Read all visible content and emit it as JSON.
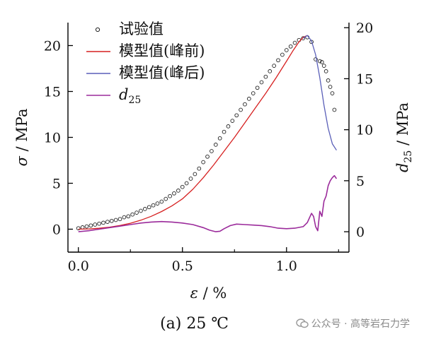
{
  "chart_data": {
    "type": "line",
    "caption": "(a) 25 ℃",
    "x_axis": {
      "label_symbol": "ε",
      "label_unit": " / %",
      "range": [
        -0.05,
        1.3
      ],
      "ticks": [
        0.0,
        0.5,
        1.0
      ],
      "tick_labels": [
        "0.0",
        "0.5",
        "1.0"
      ]
    },
    "y_left": {
      "label_symbol": "σ",
      "label_unit": " / MPa",
      "range": [
        -2.5,
        22.5
      ],
      "ticks": [
        0,
        5,
        10,
        15,
        20
      ],
      "tick_labels": [
        "0",
        "5",
        "10",
        "15",
        "20"
      ]
    },
    "y_right": {
      "label_symbol": "d",
      "label_sub": "25",
      "label_unit": " / MPa",
      "range": [
        -2.0,
        20.5
      ],
      "ticks": [
        0,
        5,
        10,
        15,
        20
      ],
      "tick_labels": [
        "0",
        "5",
        "10",
        "15",
        "20"
      ]
    },
    "legend": {
      "position": "top-left",
      "entries": [
        {
          "label": "试验值",
          "marker": "circle",
          "color": "#222222"
        },
        {
          "label": "模型值(峰前)",
          "marker": "line",
          "color": "#d62020"
        },
        {
          "label": "模型值(峰后)",
          "marker": "line",
          "color": "#5a5fb8"
        },
        {
          "label": "d",
          "sub": "25",
          "marker": "line",
          "color": "#9b2b9b"
        }
      ]
    },
    "series": [
      {
        "name": "试验值",
        "style": "markers",
        "axis": "left",
        "color": "#222222",
        "x": [
          0.0,
          0.02,
          0.04,
          0.06,
          0.08,
          0.1,
          0.12,
          0.14,
          0.16,
          0.18,
          0.2,
          0.22,
          0.24,
          0.26,
          0.28,
          0.3,
          0.32,
          0.34,
          0.36,
          0.38,
          0.4,
          0.42,
          0.44,
          0.46,
          0.48,
          0.5,
          0.52,
          0.54,
          0.56,
          0.58,
          0.6,
          0.62,
          0.64,
          0.66,
          0.68,
          0.7,
          0.72,
          0.74,
          0.76,
          0.78,
          0.8,
          0.82,
          0.84,
          0.86,
          0.88,
          0.9,
          0.92,
          0.94,
          0.96,
          0.98,
          1.0,
          1.02,
          1.04,
          1.06,
          1.08,
          1.1,
          1.12,
          1.14,
          1.16,
          1.17,
          1.18,
          1.19,
          1.2,
          1.21,
          1.22,
          1.23
        ],
        "y": [
          0.1,
          0.2,
          0.3,
          0.4,
          0.5,
          0.6,
          0.7,
          0.8,
          0.9,
          1.0,
          1.1,
          1.3,
          1.4,
          1.6,
          1.8,
          2.0,
          2.2,
          2.4,
          2.6,
          2.8,
          3.0,
          3.3,
          3.6,
          3.9,
          4.2,
          4.6,
          5.0,
          5.5,
          6.0,
          6.6,
          7.3,
          7.9,
          8.5,
          9.2,
          9.9,
          10.6,
          11.2,
          11.8,
          12.4,
          13.0,
          13.6,
          14.2,
          14.8,
          15.4,
          16.0,
          16.6,
          17.2,
          17.8,
          18.4,
          19.0,
          19.5,
          19.9,
          20.3,
          20.6,
          20.8,
          20.9,
          20.4,
          18.5,
          18.3,
          18.2,
          17.8,
          17.2,
          16.2,
          15.5,
          14.8,
          13.0
        ]
      },
      {
        "name": "模型值(峰前)",
        "style": "line",
        "axis": "left",
        "color": "#d62020",
        "x": [
          0.0,
          0.05,
          0.1,
          0.15,
          0.2,
          0.25,
          0.3,
          0.35,
          0.4,
          0.45,
          0.5,
          0.55,
          0.6,
          0.65,
          0.7,
          0.75,
          0.8,
          0.85,
          0.9,
          0.95,
          1.0,
          1.03,
          1.06,
          1.08,
          1.1
        ],
        "y": [
          0.0,
          0.03,
          0.1,
          0.22,
          0.4,
          0.65,
          0.98,
          1.4,
          1.92,
          2.55,
          3.3,
          4.35,
          5.6,
          7.0,
          8.5,
          10.0,
          11.6,
          13.2,
          14.8,
          16.5,
          18.3,
          19.4,
          20.4,
          20.9,
          21.1
        ]
      },
      {
        "name": "模型值(峰后)",
        "style": "line",
        "axis": "left",
        "color": "#5a5fb8",
        "x": [
          1.08,
          1.1,
          1.12,
          1.14,
          1.16,
          1.18,
          1.2,
          1.22,
          1.24
        ],
        "y": [
          20.8,
          21.1,
          20.5,
          19.0,
          16.5,
          13.5,
          11.0,
          9.3,
          8.6
        ]
      },
      {
        "name": "d25",
        "style": "line",
        "axis": "right",
        "color": "#9b2b9b",
        "x": [
          0.0,
          0.05,
          0.1,
          0.15,
          0.2,
          0.25,
          0.3,
          0.35,
          0.4,
          0.45,
          0.5,
          0.55,
          0.6,
          0.63,
          0.66,
          0.68,
          0.7,
          0.73,
          0.76,
          0.8,
          0.84,
          0.88,
          0.92,
          0.96,
          1.0,
          1.04,
          1.08,
          1.1,
          1.12,
          1.13,
          1.14,
          1.15,
          1.16,
          1.17,
          1.18,
          1.19,
          1.2,
          1.21,
          1.22,
          1.23,
          1.24
        ],
        "y": [
          0.0,
          0.1,
          0.25,
          0.4,
          0.55,
          0.7,
          0.85,
          0.95,
          1.0,
          0.95,
          0.85,
          0.7,
          0.4,
          0.15,
          0.0,
          0.05,
          0.3,
          0.6,
          0.75,
          0.7,
          0.65,
          0.6,
          0.5,
          0.35,
          0.3,
          0.35,
          0.5,
          0.9,
          1.8,
          1.5,
          0.5,
          0.1,
          2.0,
          1.5,
          3.0,
          3.5,
          4.5,
          5.0,
          5.3,
          5.5,
          5.2
        ]
      }
    ]
  },
  "watermark": {
    "text": "公众号 · 高等岩石力学",
    "icon": "wechat-icon"
  }
}
